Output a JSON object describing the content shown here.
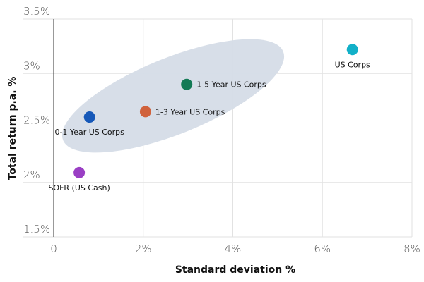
{
  "chart_data": {
    "type": "scatter",
    "xlabel": "Standard deviation %",
    "ylabel": "Total return p.a. %",
    "xlim": [
      0,
      8
    ],
    "ylim": [
      1.5,
      3.5
    ],
    "xticks": [
      "0",
      "2%",
      "4%",
      "6%",
      "8%"
    ],
    "xtick_values": [
      0,
      2,
      4,
      6,
      8
    ],
    "yticks": [
      "3.5%",
      "3%",
      "2.5%",
      "2%",
      "1.5%"
    ],
    "ytick_values": [
      3.5,
      3,
      2.5,
      2,
      1.5
    ],
    "grid": true,
    "points": [
      {
        "label": "US Corps",
        "x": 6.67,
        "y": 3.22,
        "color": "#12b0c8",
        "label_pos": "below"
      },
      {
        "label": "1-5 Year US Corps",
        "x": 2.97,
        "y": 2.9,
        "color": "#137a55",
        "label_pos": "right"
      },
      {
        "label": "1-3 Year US Corps",
        "x": 2.05,
        "y": 2.65,
        "color": "#d0623c",
        "label_pos": "right"
      },
      {
        "label": "0-1 Year US Corps",
        "x": 0.8,
        "y": 2.6,
        "color": "#1658b8",
        "label_pos": "below"
      },
      {
        "label": "SOFR (US Cash)",
        "x": 0.57,
        "y": 2.09,
        "color": "#9a3fc4",
        "label_pos": "below"
      }
    ],
    "highlight_color": "#d5dce7"
  }
}
